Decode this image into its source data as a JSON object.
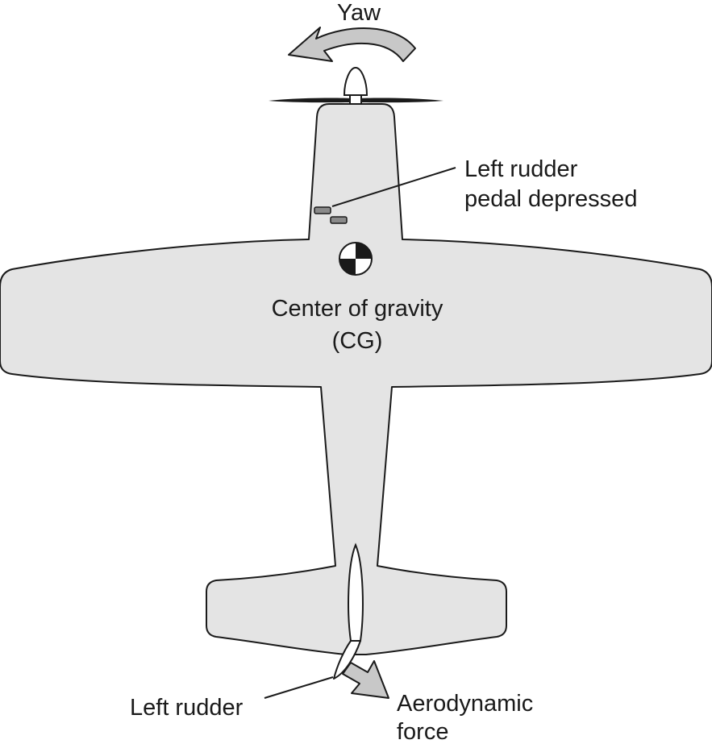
{
  "diagram": {
    "colors": {
      "airframe_fill": "#e4e4e4",
      "outline": "#1a1a1a",
      "arrow_fill": "#c8c8c8",
      "pedal_fill": "#8a8a8a",
      "background": "#ffffff"
    },
    "labels": {
      "yaw": "Yaw",
      "pedal_line1": "Left rudder",
      "pedal_line2": "pedal depressed",
      "cg_line1": "Center of gravity",
      "cg_line2": "(CG)",
      "left_rudder": "Left rudder",
      "force_line1": "Aerodynamic",
      "force_line2": "force"
    }
  }
}
